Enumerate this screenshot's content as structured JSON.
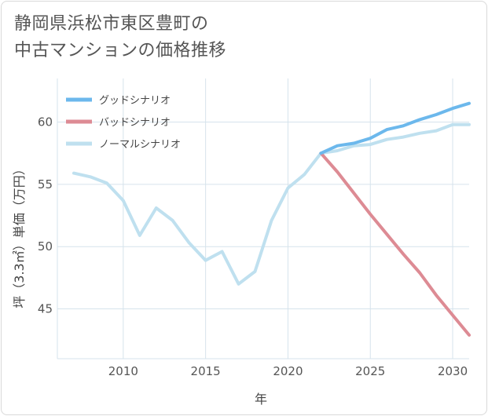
{
  "title_line1": "静岡県浜松市東区豊町の",
  "title_line2": "中古マンションの価格推移",
  "chart_data": {
    "type": "line",
    "title": "静岡県浜松市東区豊町の中古マンションの価格推移",
    "xlabel": "年",
    "ylabel": "坪（3.3㎡）単価（万円）",
    "xlim": [
      2006,
      2031
    ],
    "ylim": [
      41,
      63.5
    ],
    "x_ticks": [
      2010,
      2015,
      2020,
      2025,
      2030
    ],
    "y_ticks": [
      45,
      50,
      55,
      60
    ],
    "grid": true,
    "legend_position": "top-left",
    "series": [
      {
        "name": "グッドシナリオ",
        "color": "#6cb8ec",
        "x": [
          2022,
          2023,
          2024,
          2025,
          2026,
          2027,
          2028,
          2029,
          2030,
          2031
        ],
        "values": [
          57.5,
          58.1,
          58.3,
          58.7,
          59.4,
          59.7,
          60.2,
          60.6,
          61.1,
          61.5
        ]
      },
      {
        "name": "バッドシナリオ",
        "color": "#dd8b94",
        "x": [
          2022,
          2023,
          2024,
          2025,
          2026,
          2027,
          2028,
          2029,
          2030,
          2031
        ],
        "values": [
          57.5,
          56.0,
          54.3,
          52.6,
          51.0,
          49.4,
          47.9,
          46.1,
          44.5,
          42.9
        ]
      },
      {
        "name": "ノーマルシナリオ",
        "color": "#bfe0ef",
        "x": [
          2007,
          2008,
          2009,
          2010,
          2011,
          2012,
          2013,
          2014,
          2015,
          2016,
          2017,
          2018,
          2019,
          2020,
          2021,
          2022,
          2023,
          2024,
          2025,
          2026,
          2027,
          2028,
          2029,
          2030,
          2031
        ],
        "values": [
          55.9,
          55.6,
          55.1,
          53.7,
          50.9,
          53.1,
          52.1,
          50.3,
          48.9,
          49.6,
          47.0,
          48.0,
          52.1,
          54.7,
          55.8,
          57.5,
          57.7,
          58.1,
          58.2,
          58.6,
          58.8,
          59.1,
          59.3,
          59.8,
          59.8
        ]
      }
    ]
  }
}
